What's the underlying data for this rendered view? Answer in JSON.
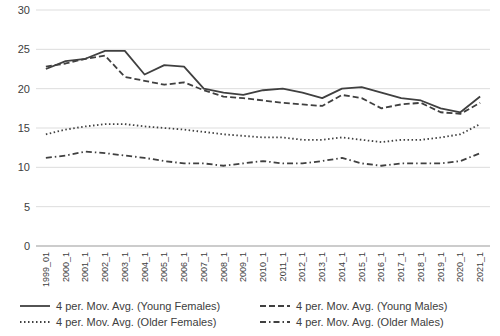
{
  "chart_data": {
    "type": "line",
    "categories": [
      "1999_01",
      "2000_1",
      "2001_1",
      "2002_1",
      "2003_1",
      "2004_1",
      "2005_1",
      "2006_1",
      "2007_1",
      "2008_1",
      "2009_1",
      "2010_1",
      "2011_1",
      "2012_1",
      "2013_1",
      "2014_1",
      "2015_1",
      "2016_1",
      "2017_1",
      "2018_1",
      "2019_1",
      "2020_1",
      "2021_1"
    ],
    "series": [
      {
        "name": "4 per. Mov. Avg. (Young Females)",
        "color": "#404040",
        "line_style": "solid",
        "values": [
          22.5,
          23.5,
          23.8,
          24.8,
          24.8,
          21.8,
          23.0,
          22.8,
          20.0,
          19.5,
          19.2,
          19.8,
          20.0,
          19.5,
          18.8,
          20.0,
          20.2,
          19.5,
          18.8,
          18.5,
          17.5,
          17.0,
          19.0
        ]
      },
      {
        "name": "4 per. Mov. Avg. (Young Males)",
        "color": "#404040",
        "line_style": "dashed",
        "values": [
          22.8,
          23.2,
          23.8,
          24.2,
          21.5,
          21.0,
          20.5,
          20.8,
          19.8,
          19.0,
          18.8,
          18.5,
          18.2,
          18.0,
          17.8,
          19.2,
          18.8,
          17.5,
          18.0,
          18.2,
          17.0,
          16.8,
          18.2
        ]
      },
      {
        "name": "4 per. Mov. Avg. (Older Females)",
        "color": "#404040",
        "line_style": "dotted",
        "values": [
          14.2,
          14.8,
          15.2,
          15.5,
          15.5,
          15.2,
          15.0,
          14.8,
          14.5,
          14.2,
          14.0,
          13.8,
          13.8,
          13.5,
          13.5,
          13.8,
          13.5,
          13.2,
          13.5,
          13.5,
          13.8,
          14.2,
          15.5
        ]
      },
      {
        "name": "4 per. Mov. Avg. (Older Males)",
        "color": "#404040",
        "line_style": "dashdot",
        "values": [
          11.2,
          11.5,
          12.0,
          11.8,
          11.5,
          11.2,
          10.8,
          10.5,
          10.5,
          10.2,
          10.5,
          10.8,
          10.5,
          10.5,
          10.8,
          11.2,
          10.5,
          10.2,
          10.5,
          10.5,
          10.5,
          10.8,
          11.8
        ]
      }
    ],
    "ylim": [
      0,
      30
    ],
    "yticks": [
      0,
      5,
      10,
      15,
      20,
      25,
      30
    ],
    "grid": true,
    "legend": "bottom"
  }
}
